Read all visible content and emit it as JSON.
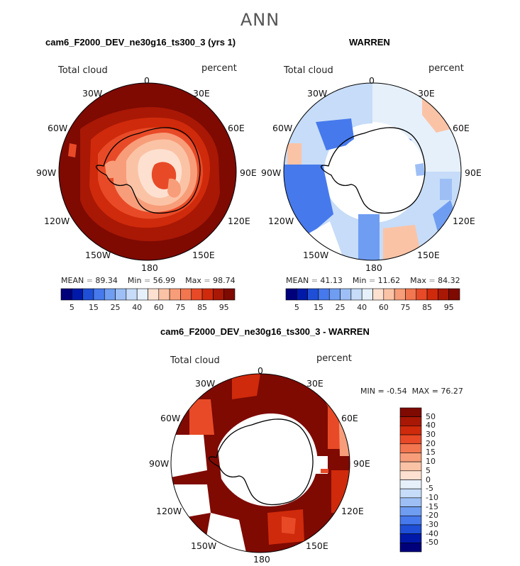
{
  "figure": {
    "season": "ANN",
    "variable": "Total cloud",
    "units": "percent"
  },
  "panels": [
    {
      "title": "cam6_F2000_DEV_ne30g16_ts300_3 (yrs 1)",
      "stats": {
        "mean_label": "MEAN",
        "mean": "89.34",
        "min_label": "Min",
        "min": "56.99",
        "max_label": "Max",
        "max": "98.74"
      }
    },
    {
      "title": "WARREN",
      "stats": {
        "mean_label": "MEAN",
        "mean": "41.13",
        "min_label": "Min",
        "min": "11.62",
        "max_label": "Max",
        "max": "84.32"
      }
    },
    {
      "title": "cam6_F2000_DEV_ne30g16_ts300_3 - WARREN",
      "stats": {
        "min_label": "MIN =",
        "min": "-0.54",
        "max_label": "MAX =",
        "max": "76.27"
      }
    }
  ],
  "longitude_labels": [
    "0",
    "30E",
    "60E",
    "90E",
    "120E",
    "150E",
    "180",
    "150W",
    "120W",
    "90W",
    "60W",
    "30W"
  ],
  "colorbar_abs": {
    "ticks": [
      "5",
      "15",
      "25",
      "40",
      "60",
      "75",
      "85",
      "95"
    ],
    "colors": [
      "#00007a",
      "#0019a8",
      "#1e4fd6",
      "#4679ec",
      "#6f9df2",
      "#9dbff5",
      "#c6dcf8",
      "#e6f0fb",
      "#fde0d0",
      "#fbc3a6",
      "#f89d79",
      "#f2764f",
      "#e84a27",
      "#cf2a0b",
      "#a81805",
      "#7e0a02"
    ]
  },
  "colorbar_diff": {
    "labels": [
      "50",
      "40",
      "30",
      "20",
      "15",
      "10",
      "5",
      "0",
      "-5",
      "-10",
      "-15",
      "-20",
      "-30",
      "-40",
      "-50"
    ],
    "colors": [
      "#7e0a02",
      "#a81805",
      "#cf2a0b",
      "#e84a27",
      "#f2764f",
      "#f89d79",
      "#fbc3a6",
      "#fde0d0",
      "#e6f0fb",
      "#c6dcf8",
      "#9dbff5",
      "#6f9df2",
      "#4679ec",
      "#1e4fd6",
      "#0019a8",
      "#00007a"
    ]
  }
}
